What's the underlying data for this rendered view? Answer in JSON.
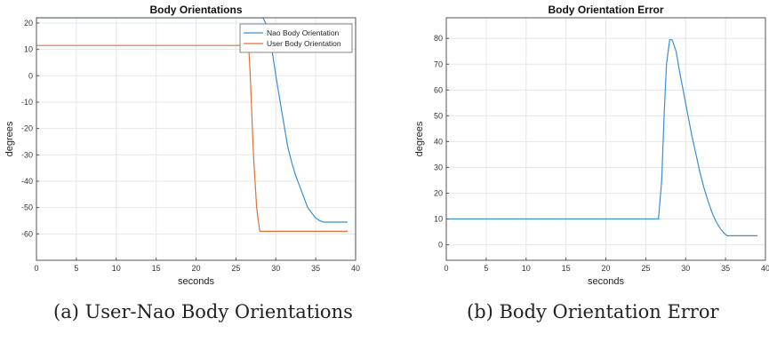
{
  "chart_data": [
    {
      "type": "line",
      "title": "Body Orientations",
      "xlabel": "seconds",
      "ylabel": "degrees",
      "xlim": [
        0,
        40
      ],
      "ylim": [
        -70,
        22
      ],
      "xticks": [
        0,
        5,
        10,
        15,
        20,
        25,
        30,
        35,
        40
      ],
      "yticks": [
        20,
        10,
        0,
        -10,
        -20,
        -30,
        -40,
        -50,
        -60
      ],
      "grid": true,
      "legend_position": "top-right",
      "series": [
        {
          "name": "Nao Body Orientation",
          "color": "#3a8fd0",
          "x": [
            0,
            25.6,
            26.2,
            27.0,
            27.8,
            28.4,
            29.0,
            29.5,
            30.0,
            30.5,
            31.0,
            31.5,
            32.0,
            32.5,
            33.0,
            33.5,
            34.0,
            34.5,
            35.0,
            35.5,
            36.0,
            39.0
          ],
          "y": [
            22,
            22,
            22,
            22,
            22,
            22,
            18,
            10,
            0,
            -9,
            -18,
            -27,
            -33,
            -38,
            -42,
            -46,
            -50,
            -52,
            -54,
            -55,
            -55.5,
            -55.5
          ]
        },
        {
          "name": "User Body Orientation",
          "color": "#e0703a",
          "x": [
            0,
            26.5,
            26.6,
            26.8,
            27.0,
            27.2,
            27.4,
            27.6,
            27.8,
            28.0,
            39.0
          ],
          "y": [
            11.5,
            11.5,
            11.5,
            0,
            -15,
            -30,
            -40,
            -50,
            -55,
            -59,
            -59
          ]
        }
      ]
    },
    {
      "type": "line",
      "title": "Body Orientation Error",
      "xlabel": "seconds",
      "ylabel": "degrees",
      "xlim": [
        0,
        40
      ],
      "ylim": [
        -6,
        88
      ],
      "xticks": [
        0,
        5,
        10,
        15,
        20,
        25,
        30,
        35,
        40
      ],
      "yticks": [
        0,
        10,
        20,
        30,
        40,
        50,
        60,
        70,
        80
      ],
      "grid": true,
      "series": [
        {
          "name": "",
          "color": "#3a8fd0",
          "x": [
            0,
            26.6,
            27.0,
            27.3,
            27.6,
            28.0,
            28.3,
            28.8,
            29.3,
            29.8,
            30.3,
            30.8,
            31.3,
            31.8,
            32.3,
            32.8,
            33.3,
            33.8,
            34.3,
            34.8,
            35.2,
            35.6,
            39.0
          ],
          "y": [
            10,
            10,
            25,
            50,
            70,
            79.5,
            79.5,
            75,
            66,
            58,
            50,
            42,
            35,
            28,
            22,
            17,
            12.5,
            9,
            6.5,
            4.5,
            3.5,
            3.5,
            3.5
          ]
        }
      ]
    }
  ],
  "captions": {
    "a": "(a) User-Nao Body Orientations",
    "b": "(b) Body Orientation Error"
  }
}
